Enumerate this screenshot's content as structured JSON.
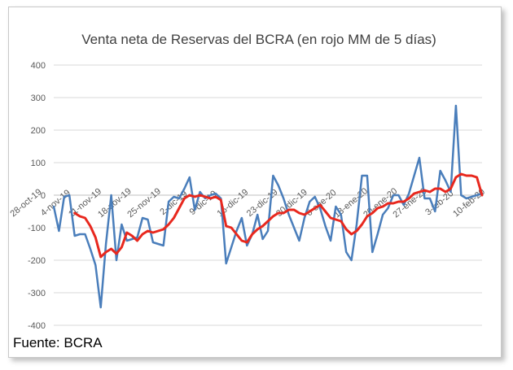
{
  "chart_data": {
    "type": "line",
    "title": "Venta neta de Reservas del BCRA (en rojo MM de 5 días)",
    "xlabel": "",
    "ylabel": "",
    "ylim": [
      -400,
      400
    ],
    "yticks": [
      400,
      300,
      200,
      100,
      0,
      -100,
      -200,
      -300,
      -400
    ],
    "xtick_labels": [
      "28-oct-19",
      "4-nov-19",
      "11-nov-19",
      "18-nov-19",
      "25-nov-19",
      "2-dic-19",
      "9-dic-19",
      "16-dic-19",
      "23-dic-19",
      "30-dic-19",
      "6-ene-20",
      "13-ene-20",
      "20-ene-20",
      "27-ene-20",
      "3-feb-20",
      "10-feb-20"
    ],
    "grid": true,
    "legend": "none",
    "series": [
      {
        "color": "#4a7ebb",
        "values": [
          -35,
          -110,
          -5,
          0,
          -125,
          -120,
          -120,
          -165,
          -215,
          -345,
          -150,
          0,
          -200,
          -90,
          -140,
          -135,
          -130,
          -70,
          -75,
          -145,
          -150,
          -155,
          -20,
          -5,
          -10,
          20,
          55,
          -45,
          10,
          -10,
          0,
          5,
          -10,
          -210,
          -160,
          -110,
          -70,
          -155,
          -120,
          -60,
          -135,
          -110,
          60,
          30,
          -10,
          -60,
          -100,
          -140,
          -70,
          -20,
          -5,
          -40,
          -95,
          -140,
          -35,
          -60,
          -175,
          -200,
          -90,
          60,
          60,
          -175,
          -120,
          -60,
          -40,
          0,
          0,
          -30,
          5,
          60,
          115,
          -10,
          -10,
          -50,
          75,
          45,
          10,
          275,
          0,
          -10,
          -5,
          0,
          5
        ]
      },
      {
        "color": "#e8281e",
        "values": [
          null,
          null,
          null,
          null,
          -55,
          -65,
          -70,
          -95,
          -130,
          -190,
          -175,
          -165,
          -180,
          -160,
          -115,
          -125,
          -140,
          -120,
          -110,
          -115,
          -110,
          -105,
          -90,
          -70,
          -40,
          -10,
          0,
          -5,
          0,
          -5,
          -10,
          -5,
          -15,
          -95,
          -100,
          -120,
          -140,
          -145,
          -120,
          -105,
          -95,
          -80,
          -65,
          -55,
          -55,
          -45,
          -45,
          -55,
          -60,
          -50,
          -40,
          -30,
          -50,
          -70,
          -75,
          -80,
          -105,
          -120,
          -110,
          -90,
          -65,
          -55,
          -40,
          -35,
          -25,
          -25,
          -20,
          -20,
          -10,
          5,
          10,
          15,
          10,
          20,
          20,
          10,
          20,
          55,
          65,
          60,
          60,
          55,
          0
        ]
      }
    ]
  },
  "source_note": "Fuente: BCRA"
}
